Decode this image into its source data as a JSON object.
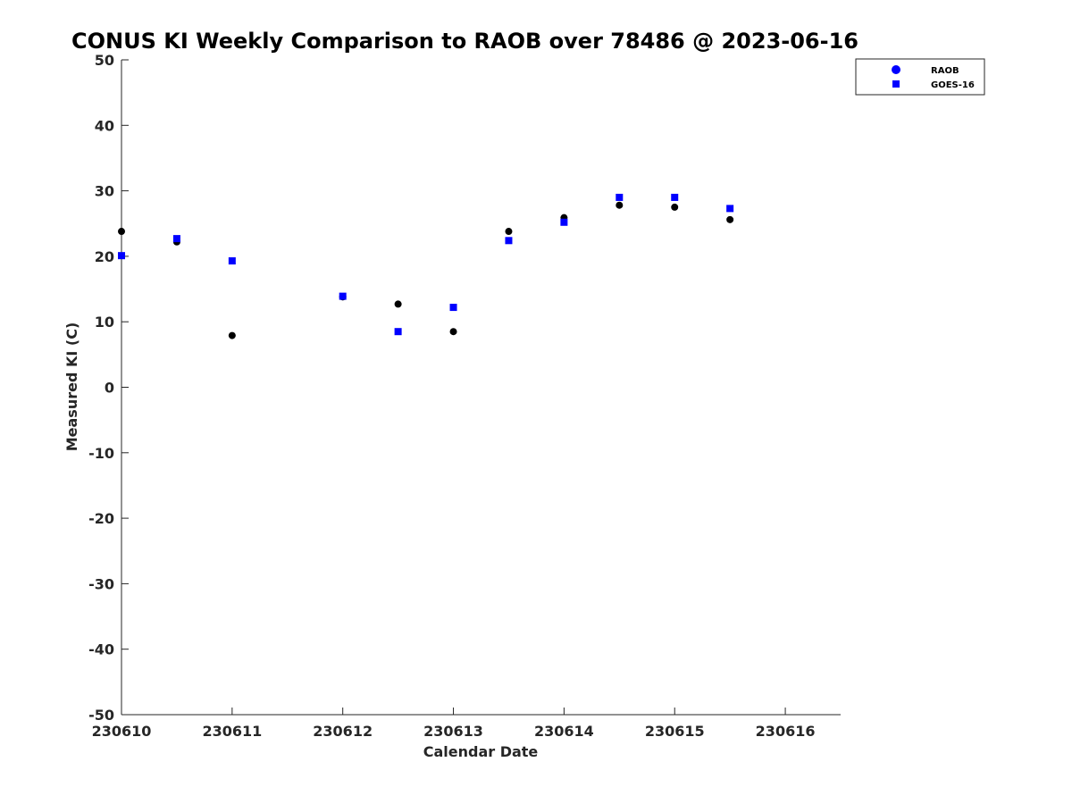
{
  "chart_data": {
    "type": "scatter",
    "title": "CONUS KI Weekly Comparison to RAOB over 78486 @ 2023-06-16",
    "xlabel": "Calendar Date",
    "ylabel": "Measured KI (C)",
    "xlim": [
      0,
      6.5
    ],
    "ylim": [
      -50,
      50
    ],
    "x_ticks": [
      {
        "value": 0,
        "label": "230610"
      },
      {
        "value": 1,
        "label": "230611"
      },
      {
        "value": 2,
        "label": "230612"
      },
      {
        "value": 3,
        "label": "230613"
      },
      {
        "value": 4,
        "label": "230614"
      },
      {
        "value": 5,
        "label": "230615"
      },
      {
        "value": 6,
        "label": "230616"
      }
    ],
    "y_ticks": [
      {
        "value": 50,
        "label": "50"
      },
      {
        "value": 40,
        "label": "40"
      },
      {
        "value": 30,
        "label": "30"
      },
      {
        "value": 20,
        "label": "20"
      },
      {
        "value": 10,
        "label": "10"
      },
      {
        "value": 0,
        "label": "0"
      },
      {
        "value": -10,
        "label": "-10"
      },
      {
        "value": -20,
        "label": "-20"
      },
      {
        "value": -30,
        "label": "-30"
      },
      {
        "value": -40,
        "label": "-40"
      },
      {
        "value": -50,
        "label": "-50"
      }
    ],
    "grid": false,
    "legend_position": "top-right",
    "series": [
      {
        "name": "RAOB",
        "marker": "circle",
        "legend_color": "#0000ff",
        "point_color": "#000000",
        "x": [
          0,
          0.5,
          1,
          2,
          2.5,
          3,
          3.5,
          4,
          4.5,
          5,
          5.5
        ],
        "y": [
          23.8,
          22.2,
          7.9,
          13.8,
          12.7,
          8.5,
          23.8,
          25.9,
          27.8,
          27.5,
          25.6
        ]
      },
      {
        "name": "GOES-16",
        "marker": "square",
        "legend_color": "#0000ff",
        "point_color": "#0000ff",
        "x": [
          0,
          0.5,
          1,
          2,
          2.5,
          3,
          3.5,
          4,
          4.5,
          5,
          5.5
        ],
        "y": [
          20.1,
          22.7,
          19.3,
          13.9,
          8.5,
          12.2,
          22.4,
          25.2,
          29.0,
          29.0,
          27.3
        ]
      }
    ]
  }
}
